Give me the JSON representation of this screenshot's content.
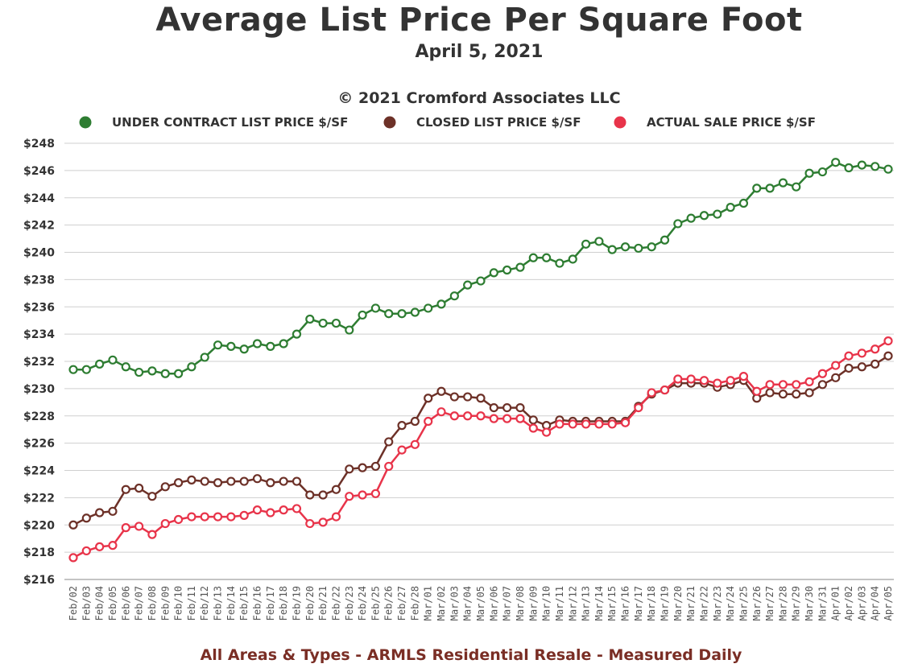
{
  "title": "Average List Price Per Square Foot",
  "subtitle": "April 5, 2021",
  "copyright": "© 2021 Cromford Associates LLC",
  "footer": "All Areas & Types - ARMLS Residential Resale - Measured Daily",
  "chart_data": {
    "type": "line",
    "x": [
      "Feb/02",
      "Feb/03",
      "Feb/04",
      "Feb/05",
      "Feb/06",
      "Feb/07",
      "Feb/08",
      "Feb/09",
      "Feb/10",
      "Feb/11",
      "Feb/12",
      "Feb/13",
      "Feb/14",
      "Feb/15",
      "Feb/16",
      "Feb/17",
      "Feb/18",
      "Feb/19",
      "Feb/20",
      "Feb/21",
      "Feb/22",
      "Feb/23",
      "Feb/24",
      "Feb/25",
      "Feb/26",
      "Feb/27",
      "Feb/28",
      "Mar/01",
      "Mar/02",
      "Mar/03",
      "Mar/04",
      "Mar/05",
      "Mar/06",
      "Mar/07",
      "Mar/08",
      "Mar/09",
      "Mar/10",
      "Mar/11",
      "Mar/12",
      "Mar/13",
      "Mar/14",
      "Mar/15",
      "Mar/16",
      "Mar/17",
      "Mar/18",
      "Mar/19",
      "Mar/20",
      "Mar/21",
      "Mar/22",
      "Mar/23",
      "Mar/24",
      "Mar/25",
      "Mar/26",
      "Mar/27",
      "Mar/28",
      "Mar/29",
      "Mar/30",
      "Mar/31",
      "Apr/01",
      "Apr/02",
      "Apr/03",
      "Apr/04",
      "Apr/05"
    ],
    "ylim": [
      216,
      248
    ],
    "yticks": [
      "$216",
      "$218",
      "$220",
      "$222",
      "$224",
      "$226",
      "$228",
      "$230",
      "$232",
      "$234",
      "$236",
      "$238",
      "$240",
      "$242",
      "$244",
      "$246",
      "$248"
    ],
    "grid": true,
    "legend_position": "top",
    "series": [
      {
        "name": "UNDER CONTRACT LIST PRICE $/SF",
        "color": "#2e7d32",
        "values": [
          231.4,
          231.4,
          231.8,
          232.1,
          231.6,
          231.2,
          231.3,
          231.1,
          231.1,
          231.6,
          232.3,
          233.2,
          233.1,
          232.9,
          233.3,
          233.1,
          233.3,
          234.0,
          235.1,
          234.8,
          234.8,
          234.3,
          235.4,
          235.9,
          235.5,
          235.5,
          235.6,
          235.9,
          236.2,
          236.8,
          237.6,
          237.9,
          238.5,
          238.7,
          238.9,
          239.6,
          239.6,
          239.2,
          239.5,
          240.6,
          240.8,
          240.2,
          240.4,
          240.3,
          240.4,
          240.9,
          242.1,
          242.5,
          242.7,
          242.8,
          243.3,
          243.6,
          244.7,
          244.7,
          245.1,
          244.8,
          245.8,
          245.9,
          246.6,
          246.2,
          246.4,
          246.3,
          246.1
        ]
      },
      {
        "name": "CLOSED LIST PRICE $/SF",
        "color": "#6d3128",
        "values": [
          220.0,
          220.5,
          220.9,
          221.0,
          222.6,
          222.7,
          222.1,
          222.8,
          223.1,
          223.3,
          223.2,
          223.1,
          223.2,
          223.2,
          223.4,
          223.1,
          223.2,
          223.2,
          222.2,
          222.2,
          222.6,
          224.1,
          224.2,
          224.3,
          226.1,
          227.3,
          227.6,
          229.3,
          229.8,
          229.4,
          229.4,
          229.3,
          228.6,
          228.6,
          228.6,
          227.7,
          227.3,
          227.7,
          227.6,
          227.6,
          227.6,
          227.6,
          227.6,
          228.7,
          229.6,
          229.9,
          230.4,
          230.4,
          230.4,
          230.1,
          230.3,
          230.6,
          229.3,
          229.7,
          229.6,
          229.6,
          229.7,
          230.3,
          230.8,
          231.5,
          231.6,
          231.8,
          232.4
        ]
      },
      {
        "name": "ACTUAL SALE PRICE $/SF",
        "color": "#e8344a",
        "values": [
          217.6,
          218.1,
          218.4,
          218.5,
          219.8,
          219.9,
          219.3,
          220.1,
          220.4,
          220.6,
          220.6,
          220.6,
          220.6,
          220.7,
          221.1,
          220.9,
          221.1,
          221.2,
          220.1,
          220.2,
          220.6,
          222.1,
          222.2,
          222.3,
          224.3,
          225.5,
          225.9,
          227.6,
          228.3,
          228.0,
          228.0,
          228.0,
          227.8,
          227.8,
          227.8,
          227.1,
          226.8,
          227.4,
          227.4,
          227.4,
          227.4,
          227.4,
          227.5,
          228.6,
          229.7,
          229.9,
          230.7,
          230.7,
          230.6,
          230.4,
          230.6,
          230.9,
          229.8,
          230.3,
          230.3,
          230.3,
          230.5,
          231.1,
          231.7,
          232.4,
          232.6,
          232.9,
          233.5
        ]
      }
    ]
  }
}
